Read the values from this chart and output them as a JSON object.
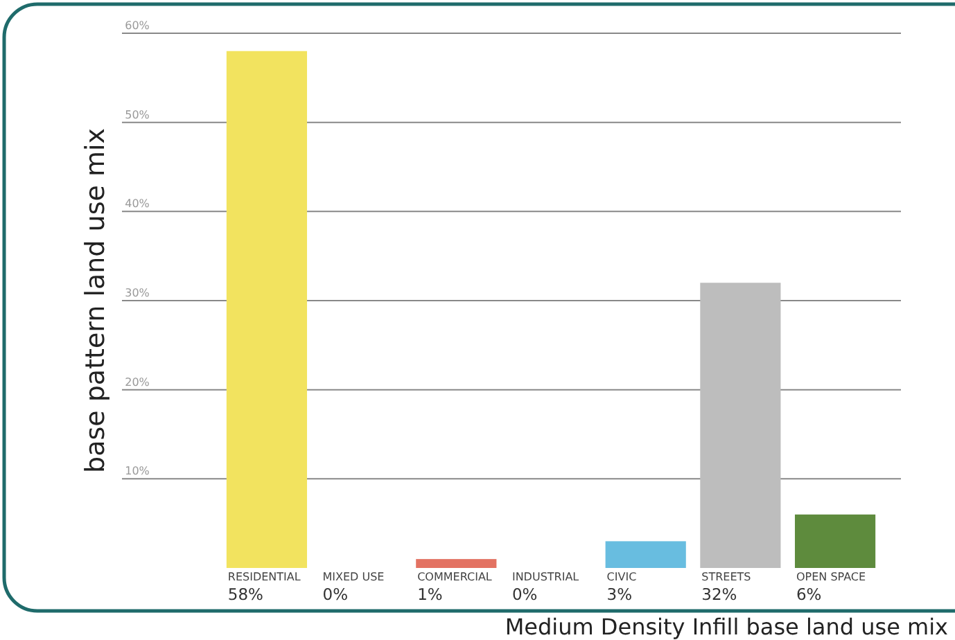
{
  "chart_data": {
    "type": "bar",
    "xlabel": "Medium Density Infill base land use mix",
    "ylabel": "base pattern land use mix",
    "categories": [
      "RESIDENTIAL",
      "MIXED USE",
      "COMMERCIAL",
      "INDUSTRIAL",
      "CIVIC",
      "STREETS",
      "OPEN SPACE"
    ],
    "values": [
      58,
      0,
      1,
      0,
      3,
      32,
      6
    ],
    "colors": [
      "#f2e35f",
      "#cccccc",
      "#e37262",
      "#cccccc",
      "#68bde0",
      "#bdbdbd",
      "#5e8b3d"
    ],
    "value_labels": [
      "58%",
      "0%",
      "1%",
      "0%",
      "3%",
      "32%",
      "6%"
    ],
    "ylim": [
      0,
      60
    ],
    "yticks": [
      {
        "value": 10,
        "label": "10%"
      },
      {
        "value": 20,
        "label": "20%"
      },
      {
        "value": 30,
        "label": "30%"
      },
      {
        "value": 40,
        "label": "40%"
      },
      {
        "value": 50,
        "label": "50%"
      },
      {
        "value": 60,
        "label": "60%"
      }
    ],
    "grid": "y"
  }
}
